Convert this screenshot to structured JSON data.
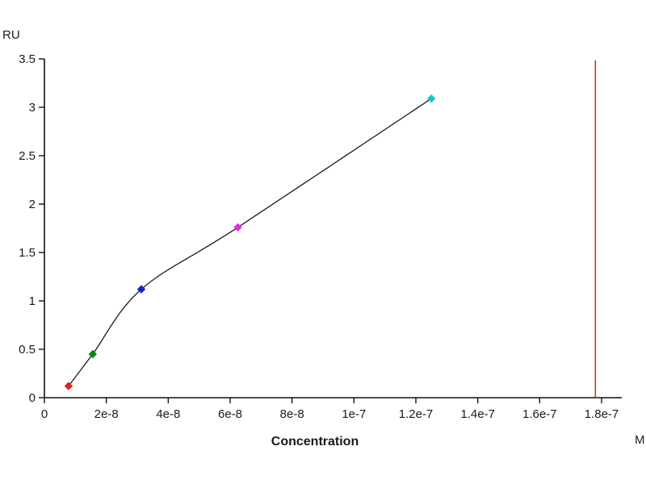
{
  "chart_data": {
    "type": "scatter",
    "title": "",
    "xlabel": "Concentration",
    "x_unit": "M",
    "ylabel": "RU",
    "xlim": [
      0,
      1.8e-07
    ],
    "ylim": [
      0,
      3.5
    ],
    "grid": false,
    "legend": "none",
    "axis_color": "#111111",
    "background": "#ffffff",
    "x_ticks": [
      {
        "value": 0,
        "label": "0"
      },
      {
        "value": 2e-08,
        "label": "2e-8"
      },
      {
        "value": 4e-08,
        "label": "4e-8"
      },
      {
        "value": 6e-08,
        "label": "6e-8"
      },
      {
        "value": 8e-08,
        "label": "8e-8"
      },
      {
        "value": 1e-07,
        "label": "1e-7"
      },
      {
        "value": 1.2e-07,
        "label": "1.2e-7"
      },
      {
        "value": 1.4e-07,
        "label": "1.4e-7"
      },
      {
        "value": 1.6e-07,
        "label": "1.6e-7"
      },
      {
        "value": 1.8e-07,
        "label": "1.8e-7"
      }
    ],
    "y_ticks": [
      {
        "value": 0,
        "label": "0"
      },
      {
        "value": 0.5,
        "label": "0.5"
      },
      {
        "value": 1,
        "label": "1"
      },
      {
        "value": 1.5,
        "label": "1.5"
      },
      {
        "value": 2,
        "label": "2"
      },
      {
        "value": 2.5,
        "label": "2.5"
      },
      {
        "value": 3,
        "label": "3"
      },
      {
        "value": 3.5,
        "label": "3.5"
      }
    ],
    "points": [
      {
        "x": 7.8e-09,
        "y": 0.12,
        "color": "#e02222",
        "marker": "diamond"
      },
      {
        "x": 1.56e-08,
        "y": 0.45,
        "color": "#0a8a0a",
        "marker": "diamond"
      },
      {
        "x": 3.13e-08,
        "y": 1.12,
        "color": "#1122cc",
        "marker": "diamond"
      },
      {
        "x": 6.25e-08,
        "y": 1.76,
        "color": "#e02ee0",
        "marker": "diamond"
      },
      {
        "x": 1.25e-07,
        "y": 3.09,
        "color": "#12c7c7",
        "marker": "diamond"
      }
    ],
    "fit_curve": {
      "description": "smooth binding-fit curve through data points",
      "color": "#1a1a1a"
    },
    "marker_line": {
      "x": 1.78e-07,
      "color": "#cc3333"
    }
  }
}
